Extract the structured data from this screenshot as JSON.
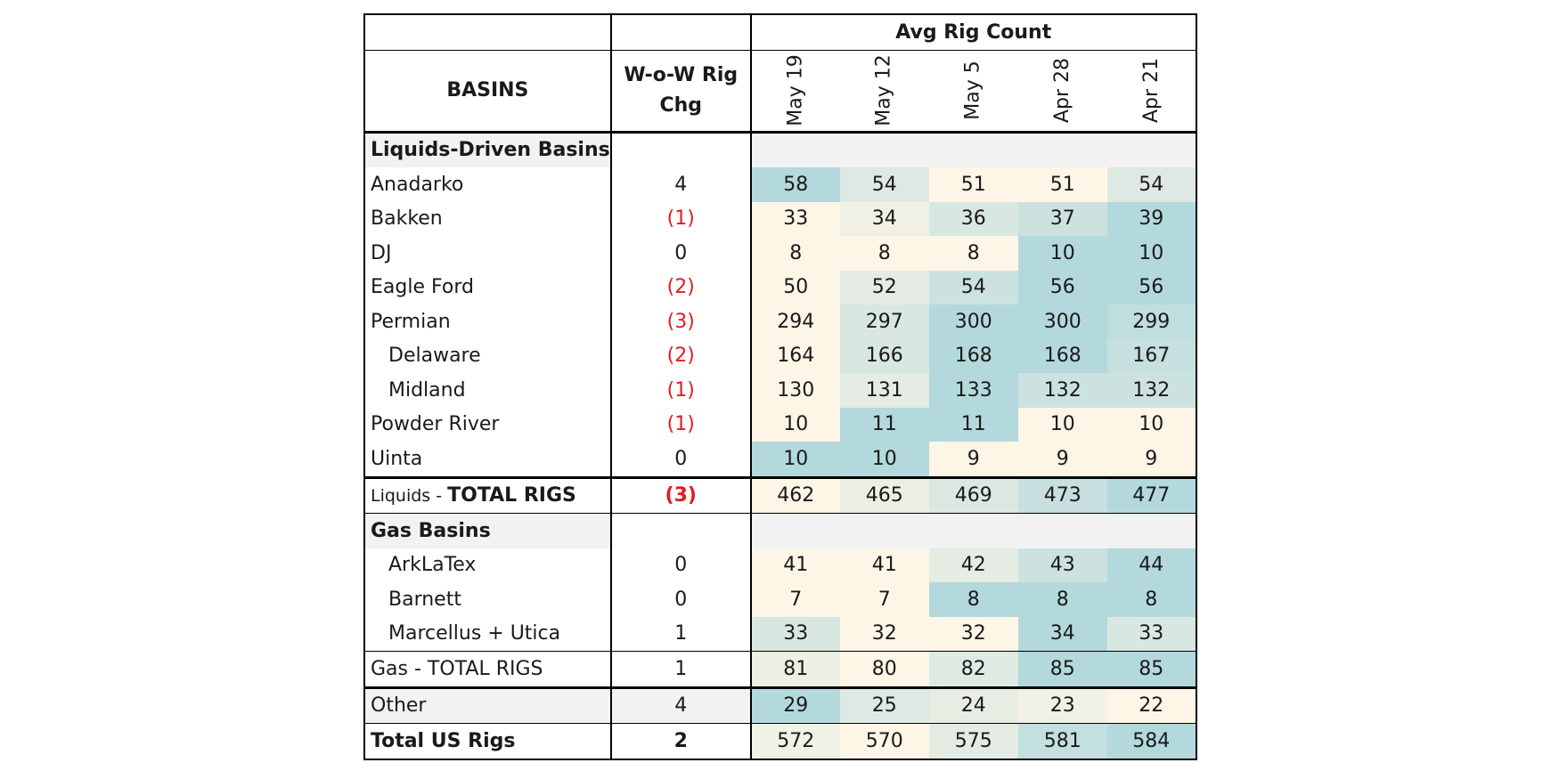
{
  "table": {
    "avg_header": "Avg Rig Count",
    "basins_header": "BASINS",
    "chg_header": "W-o-W Rig Chg",
    "dates": [
      "May 19",
      "May 12",
      "May 5",
      "Apr 28",
      "Apr 21"
    ]
  },
  "heat_colors": {
    "low": "#fdf5e6",
    "high": "#b3d9dc"
  },
  "negative_color": "#e31b23",
  "rows": [
    {
      "kind": "section",
      "name": "Liquids-Driven Basins"
    },
    {
      "kind": "data",
      "name": "Anadarko",
      "chg": "4",
      "neg": false,
      "indent": false,
      "values": [
        "58",
        "54",
        "51",
        "51",
        "54"
      ]
    },
    {
      "kind": "data",
      "name": "Bakken",
      "chg": "(1)",
      "neg": true,
      "indent": false,
      "values": [
        "33",
        "34",
        "36",
        "37",
        "39"
      ]
    },
    {
      "kind": "data",
      "name": "DJ",
      "chg": "0",
      "neg": false,
      "indent": false,
      "values": [
        "8",
        "8",
        "8",
        "10",
        "10"
      ]
    },
    {
      "kind": "data",
      "name": "Eagle Ford",
      "chg": "(2)",
      "neg": true,
      "indent": false,
      "values": [
        "50",
        "52",
        "54",
        "56",
        "56"
      ]
    },
    {
      "kind": "data",
      "name": "Permian",
      "chg": "(3)",
      "neg": true,
      "indent": false,
      "values": [
        "294",
        "297",
        "300",
        "300",
        "299"
      ]
    },
    {
      "kind": "data",
      "name": "Delaware",
      "chg": "(2)",
      "neg": true,
      "indent": true,
      "values": [
        "164",
        "166",
        "168",
        "168",
        "167"
      ]
    },
    {
      "kind": "data",
      "name": "Midland",
      "chg": "(1)",
      "neg": true,
      "indent": true,
      "values": [
        "130",
        "131",
        "133",
        "132",
        "132"
      ]
    },
    {
      "kind": "data",
      "name": "Powder River",
      "chg": "(1)",
      "neg": true,
      "indent": false,
      "values": [
        "10",
        "11",
        "11",
        "10",
        "10"
      ]
    },
    {
      "kind": "data",
      "name": "Uinta",
      "chg": "0",
      "neg": false,
      "indent": false,
      "values": [
        "10",
        "10",
        "9",
        "9",
        "9"
      ]
    },
    {
      "kind": "total",
      "prefix": "Liquids - ",
      "name": "TOTAL RIGS",
      "chg": "(3)",
      "neg": true,
      "values": [
        "462",
        "465",
        "469",
        "473",
        "477"
      ]
    },
    {
      "kind": "section",
      "name": "Gas Basins"
    },
    {
      "kind": "data",
      "name": "ArkLaTex",
      "chg": "0",
      "neg": false,
      "indent": true,
      "values": [
        "41",
        "41",
        "42",
        "43",
        "44"
      ]
    },
    {
      "kind": "data",
      "name": "Barnett",
      "chg": "0",
      "neg": false,
      "indent": true,
      "values": [
        "7",
        "7",
        "8",
        "8",
        "8"
      ]
    },
    {
      "kind": "data",
      "name": "Marcellus + Utica",
      "chg": "1",
      "neg": false,
      "indent": true,
      "values": [
        "33",
        "32",
        "32",
        "34",
        "33"
      ]
    },
    {
      "kind": "gas-total",
      "prefix": "Gas - ",
      "name": "TOTAL RIGS",
      "chg": "1",
      "neg": false,
      "values": [
        "81",
        "80",
        "82",
        "85",
        "85"
      ]
    },
    {
      "kind": "other",
      "name": "Other",
      "chg": "4",
      "neg": false,
      "values": [
        "29",
        "25",
        "24",
        "23",
        "22"
      ]
    },
    {
      "kind": "grand",
      "name": "Total US Rigs",
      "chg": "2",
      "neg": false,
      "values": [
        "572",
        "570",
        "575",
        "581",
        "584"
      ]
    }
  ]
}
